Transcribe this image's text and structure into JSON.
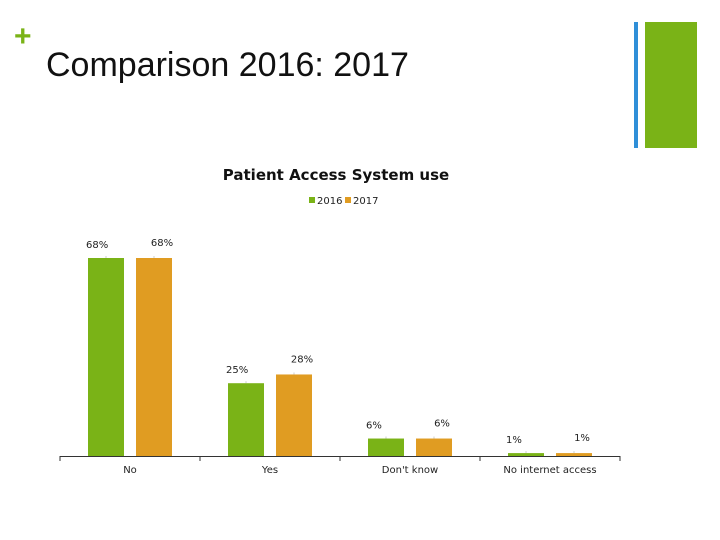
{
  "slide": {
    "plus": "+",
    "title": "Comparison 2016: 2017"
  },
  "colors": {
    "accent_green": "#7ab317",
    "accent_blue": "#2f8fd8",
    "series_2016": "#7ab317",
    "series_2017": "#e09c22"
  },
  "chart_data": {
    "type": "bar",
    "title": "Patient Access System use",
    "categories": [
      "No",
      "Yes",
      "Don't know",
      "No internet access"
    ],
    "series": [
      {
        "name": "2016",
        "values": [
          68,
          25,
          6,
          1
        ],
        "labels": [
          "68%",
          "25%",
          "6%",
          "1%"
        ]
      },
      {
        "name": "2017",
        "values": [
          68,
          28,
          6,
          1
        ],
        "labels": [
          "68%",
          "28%",
          "6%",
          "1%"
        ]
      }
    ],
    "legend_position": "top",
    "grid": false,
    "ylim": [
      0,
      68
    ]
  }
}
